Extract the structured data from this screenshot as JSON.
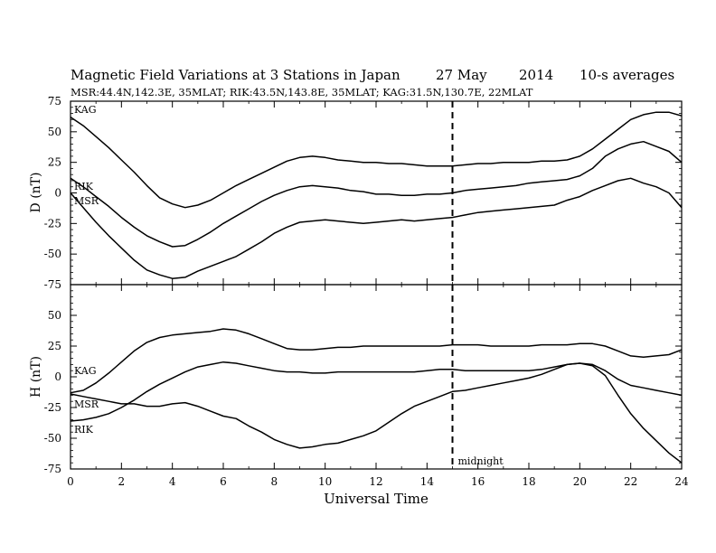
{
  "header": {
    "title": "Magnetic Field Variations at 3 Stations in Japan",
    "date": "27 May",
    "year": "2014",
    "averaging": "10-s averages",
    "stations_line": "MSR:44.4N,142.3E, 35MLAT;   RIK:43.5N,143.8E, 35MLAT;   KAG:31.5N,130.7E, 22MLAT"
  },
  "chart_data": [
    {
      "type": "line",
      "panel": "top",
      "ylabel": "D (nT)",
      "xlim": [
        0,
        24
      ],
      "ylim": [
        -75,
        75
      ],
      "yticks": [
        -75,
        -50,
        -25,
        0,
        25,
        50,
        75
      ],
      "series": [
        {
          "name": "KAG",
          "x": [
            0,
            0.5,
            1,
            1.5,
            2,
            2.5,
            3,
            3.5,
            4,
            4.5,
            5,
            5.5,
            6,
            6.5,
            7,
            7.5,
            8,
            8.5,
            9,
            9.5,
            10,
            10.5,
            11,
            11.5,
            12,
            12.5,
            13,
            13.5,
            14,
            14.5,
            15,
            15.5,
            16,
            16.5,
            17,
            17.5,
            18,
            18.5,
            19,
            19.5,
            20,
            20.5,
            21,
            21.5,
            22,
            22.5,
            23,
            23.5,
            24
          ],
          "values": [
            62,
            55,
            46,
            37,
            27,
            17,
            6,
            -4,
            -9,
            -12,
            -10,
            -6,
            0,
            6,
            11,
            16,
            21,
            26,
            29,
            30,
            29,
            27,
            26,
            25,
            25,
            24,
            24,
            23,
            22,
            22,
            22,
            23,
            24,
            24,
            25,
            25,
            25,
            26,
            26,
            27,
            30,
            36,
            44,
            52,
            60,
            64,
            66,
            66,
            63
          ]
        },
        {
          "name": "RIK",
          "x": [
            0,
            0.5,
            1,
            1.5,
            2,
            2.5,
            3,
            3.5,
            4,
            4.5,
            5,
            5.5,
            6,
            6.5,
            7,
            7.5,
            8,
            8.5,
            9,
            9.5,
            10,
            10.5,
            11,
            11.5,
            12,
            12.5,
            13,
            13.5,
            14,
            14.5,
            15,
            15.5,
            16,
            16.5,
            17,
            17.5,
            18,
            18.5,
            19,
            19.5,
            20,
            20.5,
            21,
            21.5,
            22,
            22.5,
            23,
            23.5,
            24
          ],
          "values": [
            12,
            5,
            -3,
            -11,
            -20,
            -28,
            -35,
            -40,
            -44,
            -43,
            -38,
            -32,
            -25,
            -19,
            -13,
            -7,
            -2,
            2,
            5,
            6,
            5,
            4,
            2,
            1,
            -1,
            -1,
            -2,
            -2,
            -1,
            -1,
            0,
            2,
            3,
            4,
            5,
            6,
            8,
            9,
            10,
            11,
            14,
            20,
            30,
            36,
            40,
            42,
            38,
            34,
            25
          ]
        },
        {
          "name": "MSR",
          "x": [
            0,
            0.5,
            1,
            1.5,
            2,
            2.5,
            3,
            3.5,
            4,
            4.5,
            5,
            5.5,
            6,
            6.5,
            7,
            7.5,
            8,
            8.5,
            9,
            9.5,
            10,
            10.5,
            11,
            11.5,
            12,
            12.5,
            13,
            13.5,
            14,
            14.5,
            15,
            15.5,
            16,
            16.5,
            17,
            17.5,
            18,
            18.5,
            19,
            19.5,
            20,
            20.5,
            21,
            21.5,
            22,
            22.5,
            23,
            23.5,
            24
          ],
          "values": [
            0,
            -12,
            -24,
            -35,
            -45,
            -55,
            -63,
            -67,
            -70,
            -69,
            -64,
            -60,
            -56,
            -52,
            -46,
            -40,
            -33,
            -28,
            -24,
            -23,
            -22,
            -23,
            -24,
            -25,
            -24,
            -23,
            -22,
            -23,
            -22,
            -21,
            -20,
            -18,
            -16,
            -15,
            -14,
            -13,
            -12,
            -11,
            -10,
            -6,
            -3,
            2,
            6,
            10,
            12,
            8,
            5,
            0,
            -12
          ]
        }
      ]
    },
    {
      "type": "line",
      "panel": "bottom",
      "ylabel": "H (nT)",
      "xlabel": "Universal Time",
      "xlim": [
        0,
        24
      ],
      "xticks": [
        0,
        2,
        4,
        6,
        8,
        10,
        12,
        14,
        16,
        18,
        20,
        22,
        24
      ],
      "ylim": [
        -75,
        75
      ],
      "yticks": [
        -75,
        -50,
        -25,
        0,
        25,
        50,
        75
      ],
      "annotation": {
        "x": 15,
        "text": "midnight"
      },
      "series": [
        {
          "name": "KAG",
          "x": [
            0,
            0.5,
            1,
            1.5,
            2,
            2.5,
            3,
            3.5,
            4,
            4.5,
            5,
            5.5,
            6,
            6.5,
            7,
            7.5,
            8,
            8.5,
            9,
            9.5,
            10,
            10.5,
            11,
            11.5,
            12,
            12.5,
            13,
            13.5,
            14,
            14.5,
            15,
            15.5,
            16,
            16.5,
            17,
            17.5,
            18,
            18.5,
            19,
            19.5,
            20,
            20.5,
            21,
            21.5,
            22,
            22.5,
            23,
            23.5,
            24
          ],
          "values": [
            -13,
            -11,
            -5,
            3,
            12,
            21,
            28,
            32,
            34,
            35,
            36,
            37,
            39,
            38,
            35,
            31,
            27,
            23,
            22,
            22,
            23,
            24,
            24,
            25,
            25,
            25,
            25,
            25,
            25,
            25,
            26,
            26,
            26,
            25,
            25,
            25,
            25,
            26,
            26,
            26,
            27,
            27,
            25,
            21,
            17,
            16,
            17,
            18,
            22
          ]
        },
        {
          "name": "MSR",
          "x": [
            0,
            0.5,
            1,
            1.5,
            2,
            2.5,
            3,
            3.5,
            4,
            4.5,
            5,
            5.5,
            6,
            6.5,
            7,
            7.5,
            8,
            8.5,
            9,
            9.5,
            10,
            10.5,
            11,
            11.5,
            12,
            12.5,
            13,
            13.5,
            14,
            14.5,
            15,
            15.5,
            16,
            16.5,
            17,
            17.5,
            18,
            18.5,
            19,
            19.5,
            20,
            20.5,
            21,
            21.5,
            22,
            22.5,
            23,
            23.5,
            24
          ],
          "values": [
            -36,
            -35,
            -33,
            -30,
            -25,
            -19,
            -12,
            -6,
            -1,
            4,
            8,
            10,
            12,
            11,
            9,
            7,
            5,
            4,
            4,
            3,
            3,
            4,
            4,
            4,
            4,
            4,
            4,
            4,
            5,
            6,
            6,
            5,
            5,
            5,
            5,
            5,
            5,
            6,
            8,
            10,
            11,
            10,
            5,
            -2,
            -7,
            -9,
            -11,
            -13,
            -15
          ]
        },
        {
          "name": "RIK",
          "x": [
            0,
            0.5,
            1,
            1.5,
            2,
            2.5,
            3,
            3.5,
            4,
            4.5,
            5,
            5.5,
            6,
            6.5,
            7,
            7.5,
            8,
            8.5,
            9,
            9.5,
            10,
            10.5,
            11,
            11.5,
            12,
            12.5,
            13,
            13.5,
            14,
            14.5,
            15,
            15.5,
            16,
            16.5,
            17,
            17.5,
            18,
            18.5,
            19,
            19.5,
            20,
            20.5,
            21,
            21.5,
            22,
            22.5,
            23,
            23.5,
            24
          ],
          "values": [
            -14,
            -16,
            -18,
            -20,
            -22,
            -22,
            -24,
            -24,
            -22,
            -21,
            -24,
            -28,
            -32,
            -34,
            -40,
            -45,
            -51,
            -55,
            -58,
            -57,
            -55,
            -54,
            -51,
            -48,
            -44,
            -37,
            -30,
            -24,
            -20,
            -16,
            -12,
            -11,
            -9,
            -7,
            -5,
            -3,
            -1,
            2,
            6,
            10,
            11,
            9,
            1,
            -15,
            -30,
            -42,
            -52,
            -62,
            -70
          ]
        }
      ]
    }
  ]
}
